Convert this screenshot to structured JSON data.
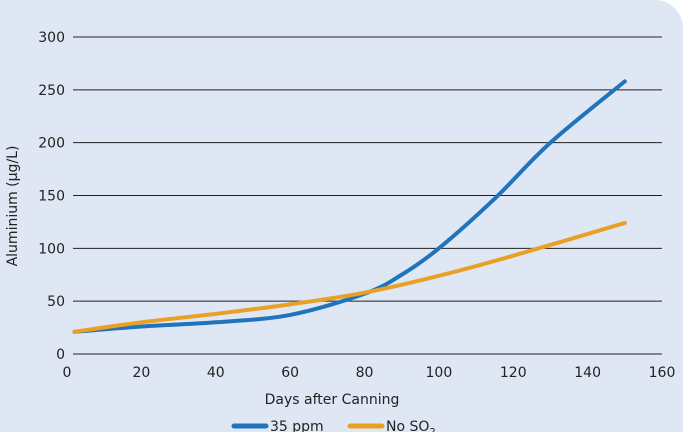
{
  "chart_data": {
    "type": "line",
    "xlabel": "Days after Canning",
    "ylabel": "Aluminium (µg/L)",
    "xlim": [
      0,
      160
    ],
    "ylim": [
      0,
      300
    ],
    "x_ticks": [
      "0",
      "20",
      "40",
      "60",
      "80",
      "100",
      "120",
      "140",
      "160"
    ],
    "y_ticks": [
      "0",
      "50",
      "100",
      "150",
      "200",
      "250",
      "300"
    ],
    "grid": "horizontal",
    "legend_position": "bottom",
    "series": [
      {
        "name": "35 ppm",
        "color": "#1f74bb",
        "x": [
          2,
          20,
          40,
          60,
          80,
          90,
          100,
          115,
          130,
          150
        ],
        "y": [
          21,
          26,
          30,
          37,
          57,
          75,
          100,
          147,
          200,
          258
        ]
      },
      {
        "name": "No SO",
        "name_subscript": "2",
        "color": "#e8a125",
        "x": [
          2,
          20,
          40,
          60,
          80,
          100,
          120,
          150
        ],
        "y": [
          21,
          30,
          38,
          47,
          58,
          74,
          93,
          124
        ]
      }
    ]
  }
}
